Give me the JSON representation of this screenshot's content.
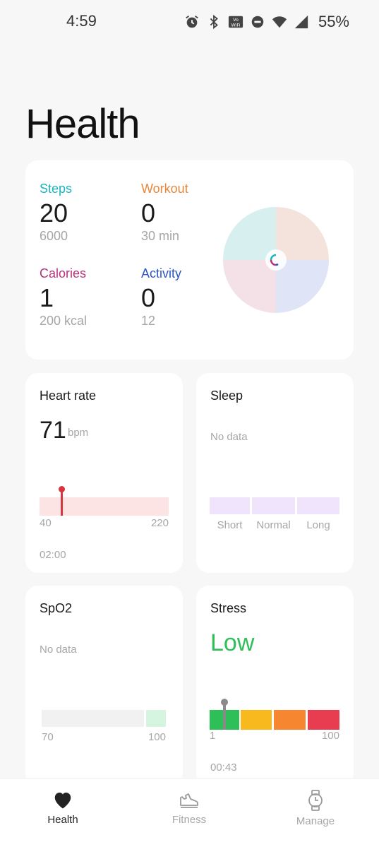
{
  "status_bar": {
    "time": "4:59",
    "battery": "55%",
    "icons": [
      "alarm-icon",
      "bluetooth-icon",
      "vowifi-icon",
      "do-not-disturb-icon",
      "wifi-icon",
      "signal-icon"
    ]
  },
  "page_title": "Health",
  "summary": {
    "steps": {
      "label": "Steps",
      "value": "20",
      "goal": "6000",
      "color": "#1ab5bd"
    },
    "workout": {
      "label": "Workout",
      "value": "0",
      "goal": "30 min",
      "color": "#e8863a"
    },
    "calories": {
      "label": "Calories",
      "value": "1",
      "goal": "200 kcal",
      "color": "#b8327a"
    },
    "activity": {
      "label": "Activity",
      "value": "0",
      "goal": "12",
      "color": "#2a55c5"
    }
  },
  "heart_rate": {
    "title": "Heart rate",
    "value": "71",
    "unit": "bpm",
    "min": "40",
    "max": "220",
    "time": "02:00"
  },
  "sleep": {
    "title": "Sleep",
    "no_data": "No data",
    "segments": [
      "Short",
      "Normal",
      "Long"
    ]
  },
  "spo2": {
    "title": "SpO2",
    "no_data": "No data",
    "min": "70",
    "max": "100"
  },
  "stress": {
    "title": "Stress",
    "level": "Low",
    "min": "1",
    "max": "100",
    "time": "00:43",
    "colors": [
      "#2fbf58",
      "#f8b91e",
      "#f6862f",
      "#e83c50"
    ]
  },
  "nav": {
    "items": [
      {
        "label": "Health",
        "icon": "heart-icon",
        "active": true
      },
      {
        "label": "Fitness",
        "icon": "shoe-icon",
        "active": false
      },
      {
        "label": "Manage",
        "icon": "watch-icon",
        "active": false
      }
    ]
  }
}
